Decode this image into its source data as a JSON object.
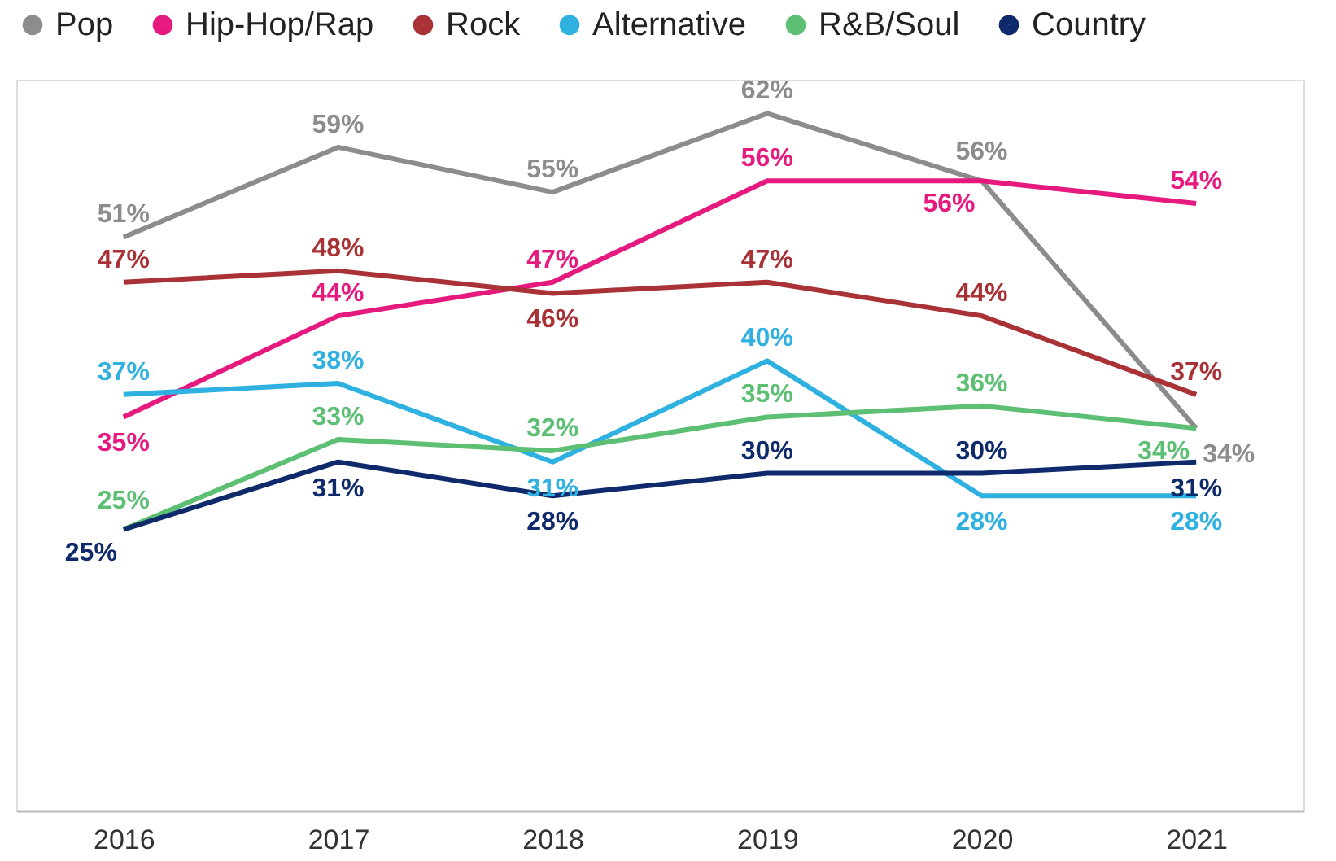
{
  "chart_data": {
    "type": "line",
    "categories": [
      "2016",
      "2017",
      "2018",
      "2019",
      "2020",
      "2021"
    ],
    "series": [
      {
        "name": "Pop",
        "color": "#8c8c8c",
        "values": [
          51,
          59,
          55,
          62,
          56,
          34
        ],
        "value_labels": [
          "51%",
          "59%",
          "55%",
          "62%",
          "56%",
          "34%"
        ]
      },
      {
        "name": "Hip-Hop/Rap",
        "color": "#e6197f",
        "values": [
          35,
          44,
          47,
          56,
          56,
          54
        ],
        "value_labels": [
          "35%",
          "44%",
          "47%",
          "56%",
          "56%",
          "54%"
        ]
      },
      {
        "name": "Rock",
        "color": "#a83236",
        "values": [
          47,
          48,
          46,
          47,
          44,
          37
        ],
        "value_labels": [
          "47%",
          "48%",
          "46%",
          "47%",
          "44%",
          "37%"
        ]
      },
      {
        "name": "Alternative",
        "color": "#2eb0e0",
        "values": [
          37,
          38,
          31,
          40,
          28,
          28
        ],
        "value_labels": [
          "37%",
          "38%",
          "31%",
          "40%",
          "28%",
          "28%"
        ]
      },
      {
        "name": "R&B/Soul",
        "color": "#5cbf73",
        "values": [
          25,
          33,
          32,
          35,
          36,
          34
        ],
        "value_labels": [
          "25%",
          "33%",
          "32%",
          "35%",
          "36%",
          "34%"
        ]
      },
      {
        "name": "Country",
        "color": "#0e2a6b",
        "values": [
          25,
          31,
          28,
          30,
          30,
          31
        ],
        "value_labels": [
          "25%",
          "31%",
          "28%",
          "30%",
          "30%",
          "31%"
        ]
      }
    ],
    "legend": "top",
    "grid": false,
    "tick_labels": "x",
    "marker": "none",
    "line_style": "solid"
  }
}
